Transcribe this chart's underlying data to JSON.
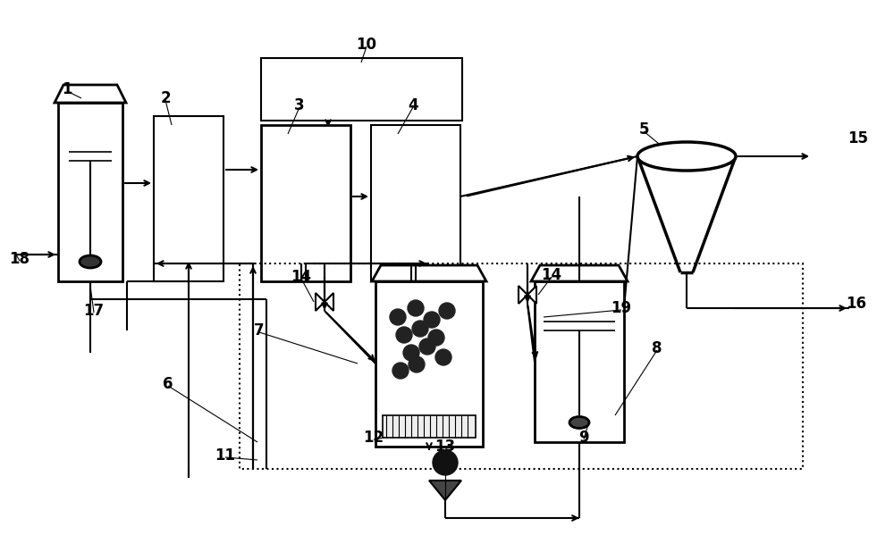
{
  "bg_color": "#ffffff",
  "line_color": "#000000",
  "fig_width": 10.0,
  "fig_height": 5.99,
  "dpi": 100
}
